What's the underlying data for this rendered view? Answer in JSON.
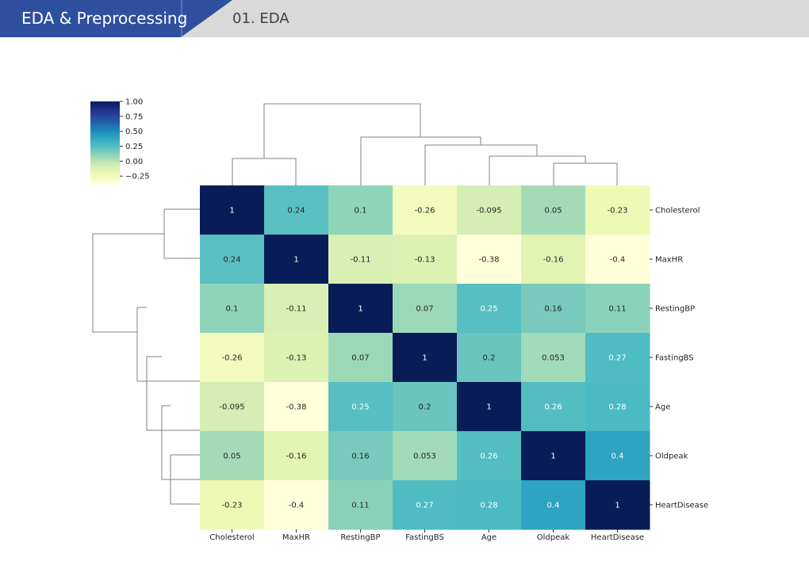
{
  "header": {
    "section_title": "EDA & Preprocessing",
    "subsection_title": "01. EDA",
    "accent_color": "#2f4f9f"
  },
  "chart_data": {
    "type": "heatmap",
    "title": "",
    "clustered": true,
    "colormap": "YlGnBu",
    "color_range": [
      -0.38,
      1.0
    ],
    "colorbar_ticks": [
      "1.00",
      "0.75",
      "0.50",
      "0.25",
      "0.00",
      "−0.25"
    ],
    "colorbar_tick_values": [
      1.0,
      0.75,
      0.5,
      0.25,
      0.0,
      -0.25
    ],
    "row_labels": [
      "Cholesterol",
      "MaxHR",
      "RestingBP",
      "FastingBS",
      "Age",
      "Oldpeak",
      "HeartDisease"
    ],
    "col_labels": [
      "Cholesterol",
      "MaxHR",
      "RestingBP",
      "FastingBS",
      "Age",
      "Oldpeak",
      "HeartDisease"
    ],
    "values": [
      [
        1,
        0.24,
        0.1,
        -0.26,
        -0.095,
        0.05,
        -0.23
      ],
      [
        0.24,
        1,
        -0.11,
        -0.13,
        -0.38,
        -0.16,
        -0.4
      ],
      [
        0.1,
        -0.11,
        1,
        0.07,
        0.25,
        0.16,
        0.11
      ],
      [
        -0.26,
        -0.13,
        0.07,
        1,
        0.2,
        0.053,
        0.27
      ],
      [
        -0.095,
        -0.38,
        0.25,
        0.2,
        1,
        0.26,
        0.28
      ],
      [
        0.05,
        -0.16,
        0.16,
        0.053,
        0.26,
        1,
        0.4
      ],
      [
        -0.23,
        -0.4,
        0.11,
        0.27,
        0.28,
        0.4,
        1
      ]
    ],
    "annotations": [
      [
        "1",
        "0.24",
        "0.1",
        "-0.26",
        "-0.095",
        "0.05",
        "-0.23"
      ],
      [
        "0.24",
        "1",
        "-0.11",
        "-0.13",
        "-0.38",
        "-0.16",
        "-0.4"
      ],
      [
        "0.1",
        "-0.11",
        "1",
        "0.07",
        "0.25",
        "0.16",
        "0.11"
      ],
      [
        "-0.26",
        "-0.13",
        "0.07",
        "1",
        "0.2",
        "0.053",
        "0.27"
      ],
      [
        "-0.095",
        "-0.38",
        "0.25",
        "0.2",
        "1",
        "0.26",
        "0.28"
      ],
      [
        "0.05",
        "-0.16",
        "0.16",
        "0.053",
        "0.26",
        "1",
        "0.4"
      ],
      [
        "-0.23",
        "-0.4",
        "0.11",
        "0.27",
        "0.28",
        "0.4",
        "1"
      ]
    ]
  }
}
